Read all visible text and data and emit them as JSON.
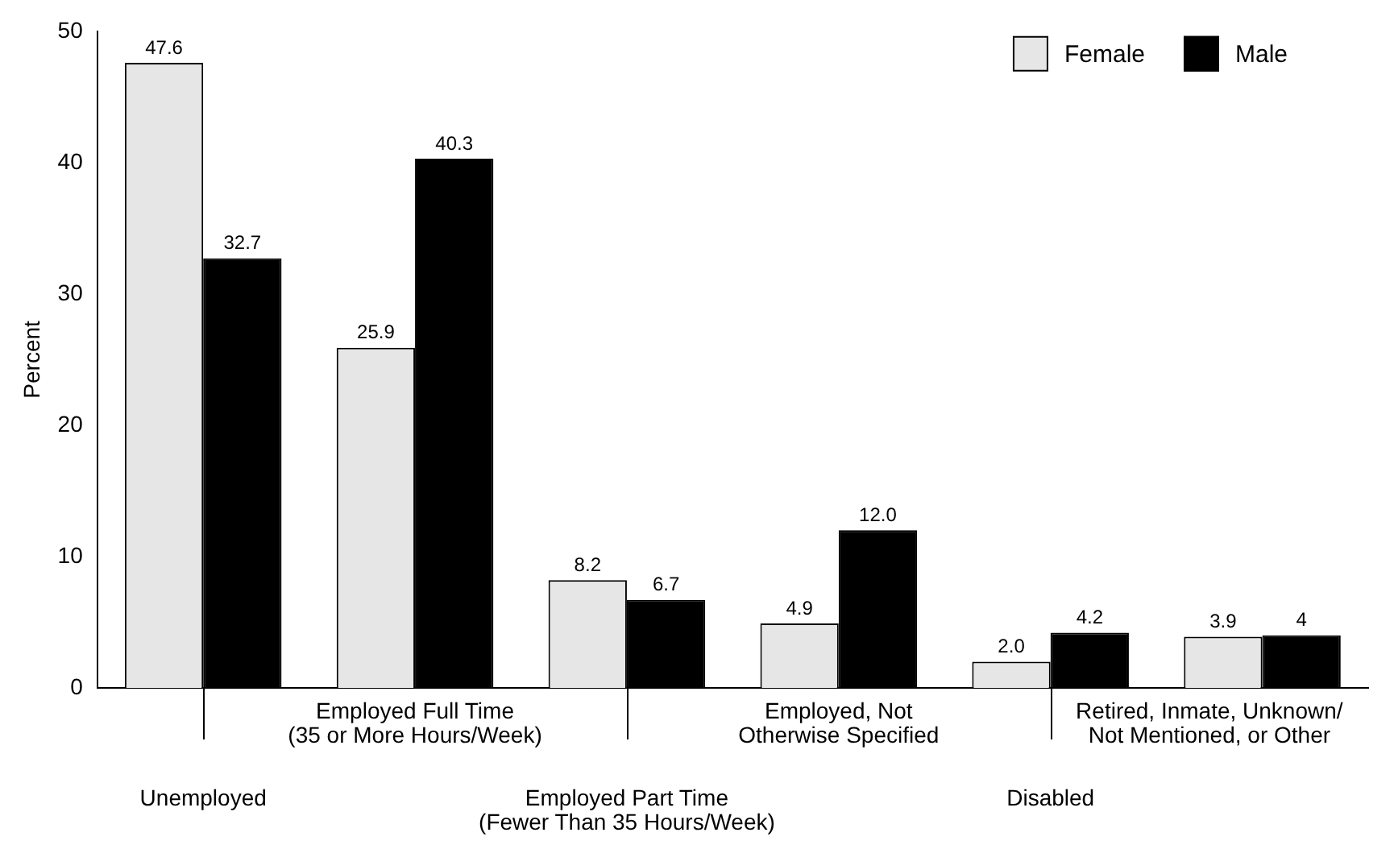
{
  "chart_data": {
    "type": "bar",
    "ylabel": "Percent",
    "categories": [
      "Unemployed",
      "Employed Full Time\n(35 or More Hours/Week)",
      "Employed Part Time\n(Fewer Than 35 Hours/Week)",
      "Employed, Not\nOtherwise Specified",
      "Disabled",
      "Retired, Inmate, Unknown/\nNot Mentioned, or Other"
    ],
    "series": [
      {
        "name": "Female",
        "color": "#e6e6e6",
        "values": [
          47.6,
          25.9,
          8.2,
          4.9,
          2.0,
          3.9
        ],
        "value_labels": [
          "47.6",
          "25.9",
          "8.2",
          "4.9",
          "2.0",
          "3.9"
        ]
      },
      {
        "name": "Male",
        "color": "#000000",
        "values": [
          32.7,
          40.3,
          6.7,
          12.0,
          4.2,
          4
        ],
        "value_labels": [
          "32.7",
          "40.3",
          "6.7",
          "12.0",
          "4.2",
          "4"
        ]
      }
    ],
    "ylim": [
      0,
      50
    ],
    "yticks": [
      0,
      10,
      20,
      30,
      40,
      50
    ],
    "grid": false,
    "legend": "top right"
  }
}
